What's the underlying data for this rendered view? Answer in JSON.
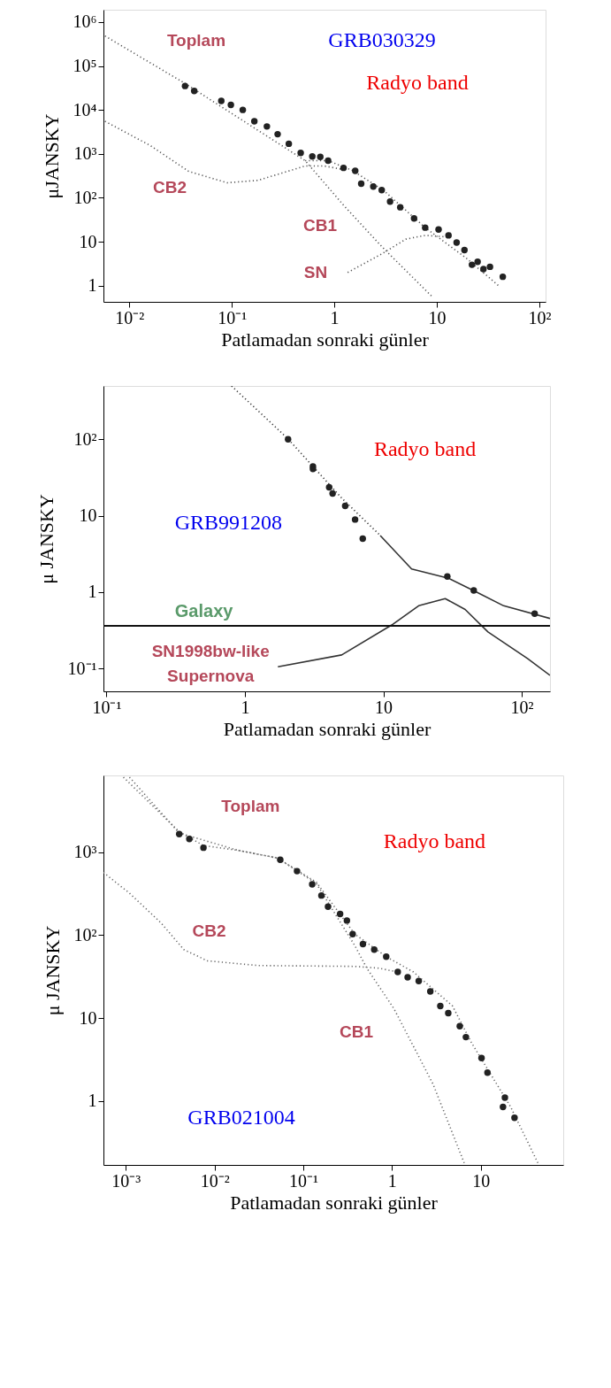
{
  "chart_data": [
    {
      "type": "line",
      "title": "GRB030329",
      "subtitle": "Radyo band",
      "xlabel": "Patlamadan sonraki günler",
      "ylabel": "μJANSKY",
      "log": "xy",
      "grid": false,
      "xlim": [
        0.0056,
        115
      ],
      "ylim": [
        0.43,
        1900000
      ],
      "xticks": [
        {
          "value": 0.01,
          "label": "10⁻²"
        },
        {
          "value": 0.1,
          "label": "10⁻¹"
        },
        {
          "value": 1,
          "label": "1"
        },
        {
          "value": 10,
          "label": "10"
        },
        {
          "value": 100,
          "label": "10²"
        }
      ],
      "yticks": [
        {
          "value": 1,
          "label": "1"
        },
        {
          "value": 10,
          "label": "10"
        },
        {
          "value": 100,
          "label": "10²"
        },
        {
          "value": 1000,
          "label": "10³"
        },
        {
          "value": 10000,
          "label": "10⁴"
        },
        {
          "value": 100000,
          "label": "10⁵"
        },
        {
          "value": 1000000,
          "label": "10⁶"
        }
      ],
      "series": [
        {
          "line_style": "dotted",
          "marker": "none",
          "color": "#555555",
          "x": [
            0.0058,
            0.035,
            0.52,
            1.23,
            2.9,
            9.1
          ],
          "values": [
            480000,
            40000,
            700,
            68,
            7.8,
            0.55
          ]
        },
        {
          "line_style": "dotted",
          "marker": "none",
          "color": "#555555",
          "x": [
            0.0058,
            0.016,
            0.038,
            0.09,
            0.18,
            0.52,
            0.8,
            1.23
          ],
          "values": [
            5500,
            1550,
            400,
            220,
            250,
            530,
            530,
            440
          ]
        },
        {
          "line_style": "dotted",
          "marker": "none",
          "color": "#555555",
          "x": [
            1.35,
            2.9,
            5.0,
            7.7,
            12
          ],
          "values": [
            2.0,
            5.3,
            11.5,
            14,
            13
          ]
        },
        {
          "line_style": "dotted",
          "marker": "none",
          "color": "#555555",
          "x": [
            0.52,
            0.87,
            1.5,
            3,
            7.7,
            20,
            40
          ],
          "values": [
            700,
            700,
            420,
            150,
            21,
            4,
            1.0
          ]
        },
        {
          "type": "scatter",
          "marker": "circle",
          "color": "#222222",
          "x": [
            0.035,
            0.043,
            0.079,
            0.098,
            0.128,
            0.166,
            0.22,
            0.28,
            0.36,
            0.47,
            0.61,
            0.73,
            0.87,
            1.23,
            1.6,
            1.83,
            2.4,
            2.9,
            3.5,
            4.4,
            6.0,
            7.7,
            10.4,
            13,
            15.6,
            18.6,
            22,
            25,
            28.5,
            33,
            44
          ],
          "values": [
            35000,
            27000,
            16000,
            13000,
            10000,
            5500,
            4200,
            2800,
            1700,
            1050,
            870,
            850,
            700,
            480,
            410,
            210,
            180,
            150,
            82,
            61,
            34,
            21,
            19,
            14,
            9.6,
            6.5,
            3.0,
            3.5,
            2.4,
            2.7,
            1.6
          ]
        }
      ],
      "annotations": [
        "Toplam",
        "CB2",
        "CB1",
        "SN"
      ]
    },
    {
      "type": "line",
      "title": "GRB991208",
      "subtitle": "Radyo band",
      "xlabel": "Patlamadan sonraki günler",
      "ylabel": "μ JANSKY",
      "log": "xy",
      "grid": false,
      "xlim": [
        0.095,
        160
      ],
      "ylim": [
        0.05,
        500
      ],
      "xticks": [
        {
          "value": 0.1,
          "label": "10⁻¹"
        },
        {
          "value": 1,
          "label": "1"
        },
        {
          "value": 10,
          "label": "10"
        },
        {
          "value": 100,
          "label": "10²"
        }
      ],
      "yticks": [
        {
          "value": 0.1,
          "label": "10⁻¹"
        },
        {
          "value": 1,
          "label": "1"
        },
        {
          "value": 10,
          "label": "10"
        },
        {
          "value": 100,
          "label": "10²"
        }
      ],
      "ref_lines": [
        {
          "axis": "y",
          "value": 0.36,
          "label": "Galaxy",
          "color": "#111111"
        }
      ],
      "series": [
        {
          "line_style": "dotted",
          "marker": "none",
          "color": "#333333",
          "x": [
            0.8,
            2.03,
            5.0,
            9.5
          ],
          "values": [
            500,
            103,
            17,
            5.5
          ]
        },
        {
          "line_style": "solid",
          "marker": "none",
          "color": "#333333",
          "x": [
            9.5,
            16,
            30,
            47,
            74,
            160
          ],
          "values": [
            5.5,
            2.0,
            1.5,
            1.0,
            0.66,
            0.45
          ]
        },
        {
          "line_style": "solid",
          "marker": "none",
          "color": "#333333",
          "x": [
            1.73,
            5.0,
            11.5,
            18,
            28,
            39,
            57,
            110,
            160
          ],
          "values": [
            0.105,
            0.15,
            0.37,
            0.66,
            0.82,
            0.59,
            0.3,
            0.135,
            0.081
          ]
        },
        {
          "type": "scatter",
          "marker": "circle",
          "color": "#222222",
          "x": [
            2.05,
            3.1,
            3.1,
            4.06,
            4.3,
            5.3,
            6.25,
            7.1,
            29,
            45,
            124
          ],
          "values": [
            100,
            44,
            41,
            23.5,
            19.5,
            13.4,
            8.9,
            5.0,
            1.6,
            1.05,
            0.52
          ]
        }
      ],
      "annotations": [
        "SN1998bw-like",
        "Supernova"
      ]
    },
    {
      "type": "line",
      "title": "GRB021004",
      "subtitle": "Radyo band",
      "xlabel": "Patlamadan sonraki günler",
      "ylabel": "μ JANSKY",
      "log": "xy",
      "grid": false,
      "xlim": [
        0.00056,
        85
      ],
      "ylim": [
        0.17,
        8400
      ],
      "xticks": [
        {
          "value": 0.001,
          "label": "10⁻³"
        },
        {
          "value": 0.01,
          "label": "10⁻²"
        },
        {
          "value": 0.1,
          "label": "10⁻¹"
        },
        {
          "value": 1,
          "label": "1"
        },
        {
          "value": 10,
          "label": "10"
        }
      ],
      "yticks": [
        {
          "value": 1,
          "label": "1"
        },
        {
          "value": 10,
          "label": "10"
        },
        {
          "value": 100,
          "label": "10²"
        },
        {
          "value": 1000,
          "label": "10³"
        }
      ],
      "series": [
        {
          "line_style": "dotted",
          "marker": "none",
          "color": "#666666",
          "x": [
            0.00094,
            0.004,
            0.0075,
            0.0185,
            0.051,
            0.14,
            0.38,
            0.86,
            1.74,
            4.8,
            7.9,
            21.7,
            44
          ],
          "values": [
            8000,
            1760,
            1200,
            1050,
            850,
            435,
            103,
            55,
            36,
            14,
            5.0,
            0.85,
            0.18
          ]
        },
        {
          "line_style": "dotted",
          "marker": "none",
          "color": "#666666",
          "x": [
            0.0011,
            0.004,
            0.0185,
            0.051,
            0.14,
            0.38,
            0.52,
            1.05,
            2.9,
            6.5
          ],
          "values": [
            8000,
            1700,
            1050,
            850,
            420,
            75,
            40,
            13,
            1.6,
            0.18
          ]
        },
        {
          "line_style": "dotted",
          "marker": "none",
          "color": "#666666",
          "x": [
            0.00056,
            0.0011,
            0.0025,
            0.0045,
            0.0083,
            0.031,
            0.38,
            0.7,
            1.16
          ],
          "values": [
            570,
            320,
            140,
            67,
            49,
            43,
            42,
            40,
            36
          ]
        },
        {
          "type": "scatter",
          "marker": "circle",
          "color": "#222222",
          "x": [
            0.004,
            0.0052,
            0.0075,
            0.055,
            0.085,
            0.126,
            0.16,
            0.19,
            0.26,
            0.31,
            0.36,
            0.47,
            0.63,
            0.86,
            1.16,
            1.5,
            2.0,
            2.7,
            3.5,
            4.3,
            5.8,
            6.8,
            10.2,
            11.9,
            17.8,
            18.7,
            24
          ],
          "values": [
            1650,
            1440,
            1130,
            810,
            590,
            410,
            300,
            220,
            180,
            150,
            103,
            78,
            67,
            55,
            36,
            31,
            28,
            21,
            14,
            11.5,
            8,
            5.9,
            3.3,
            2.2,
            0.85,
            1.1,
            0.63
          ]
        }
      ],
      "annotations": [
        "Toplam",
        "CB2",
        "CB1"
      ]
    }
  ]
}
